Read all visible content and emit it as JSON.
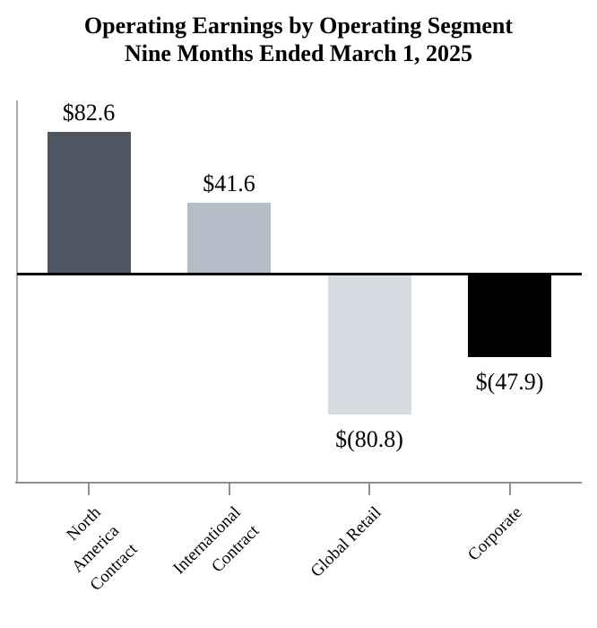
{
  "chart_data": {
    "type": "bar",
    "title": "Operating Earnings by Operating Segment",
    "subtitle": "Nine Months Ended March 1, 2025",
    "categories": [
      "North America\nContract",
      "International\nContract",
      "Global Retail",
      "Corporate"
    ],
    "values": [
      82.6,
      41.6,
      -80.8,
      -47.9
    ],
    "value_labels": [
      "$82.6",
      "$41.6",
      "$(80.8)",
      "$(47.9)"
    ],
    "bar_colors": [
      "#4e5761",
      "#b4bec8",
      "#d6dce1",
      "#000000"
    ],
    "baseline": 0,
    "ylim": [
      -120,
      100
    ],
    "grid": "off",
    "legend": "none",
    "x_tick_rotation_deg": 45,
    "value_label_position": "outside-end"
  },
  "colors": {
    "background": "#ffffff",
    "y_axis_line": "#ababab",
    "x_axis_line": "#8f8f8f",
    "zero_line": "#000000",
    "text": "#000000"
  }
}
